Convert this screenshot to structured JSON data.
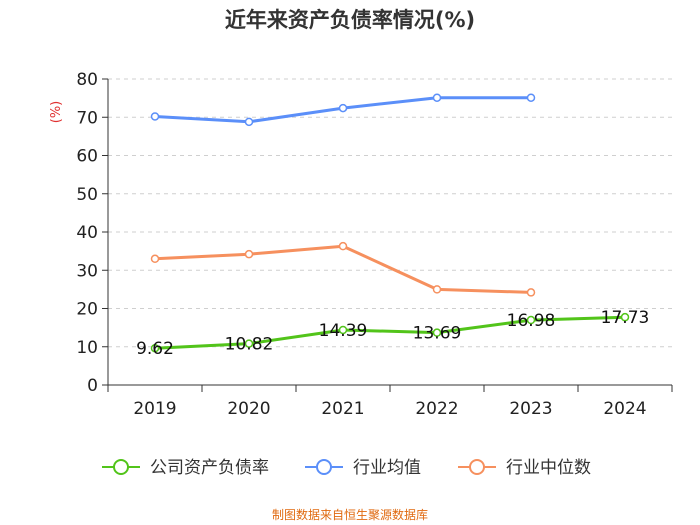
{
  "chart_data": {
    "type": "line",
    "title": "近年来资产负债率情况(%)",
    "ylabel": "(%)",
    "xlabel": "",
    "ylim": [
      0,
      80
    ],
    "yticks": [
      0,
      10,
      20,
      30,
      40,
      50,
      60,
      70,
      80
    ],
    "grid": true,
    "legend_position": "bottom",
    "categories": [
      "2019",
      "2020",
      "2021",
      "2022",
      "2023",
      "2024"
    ],
    "series": [
      {
        "name": "公司资产负债率",
        "color": "#52c41a",
        "values": [
          9.62,
          10.82,
          14.39,
          13.69,
          16.98,
          17.73
        ],
        "labels": [
          "9.62",
          "10.82",
          "14.39",
          "13.69",
          "16.98",
          "17.73"
        ]
      },
      {
        "name": "行业均值",
        "color": "#5b8ff9",
        "values": [
          70.2,
          68.8,
          72.4,
          75.1,
          75.1,
          null
        ]
      },
      {
        "name": "行业中位数",
        "color": "#f6905e",
        "values": [
          33.0,
          34.2,
          36.3,
          25.0,
          24.2,
          null
        ]
      }
    ],
    "source": "制图数据来自恒生聚源数据库"
  }
}
